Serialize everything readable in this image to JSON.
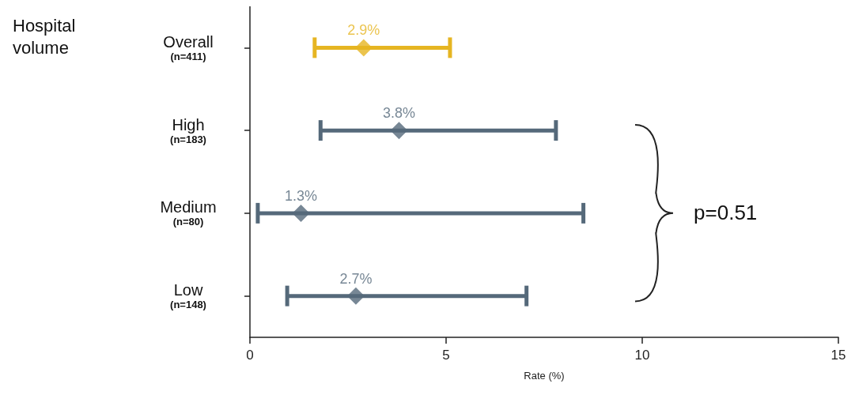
{
  "chart_data": {
    "type": "scatter",
    "orientation": "horizontal",
    "ylabel": "Hospital volume",
    "xlabel": "Rate (%)",
    "categories": [
      "Overall\n(n=411)",
      "High\n(n=183)",
      "Medium\n(n=80)",
      "Low\n(n=148)"
    ],
    "values": [
      2.9,
      3.8,
      1.3,
      2.7
    ],
    "errors": [
      [
        1.65,
        5.1
      ],
      [
        1.8,
        7.8
      ],
      [
        0.2,
        8.5
      ],
      [
        0.95,
        7.05
      ]
    ],
    "colors": [
      "#e6b522",
      "#55697a",
      "#55697a",
      "#55697a"
    ],
    "value_labels": [
      "2.9%",
      "3.8%",
      "1.3%",
      "2.7%"
    ],
    "marker": "diamond",
    "xlim": [
      0,
      15
    ],
    "xticks": [
      0,
      5,
      10,
      15
    ],
    "annotations": [
      "p=0.51"
    ]
  }
}
